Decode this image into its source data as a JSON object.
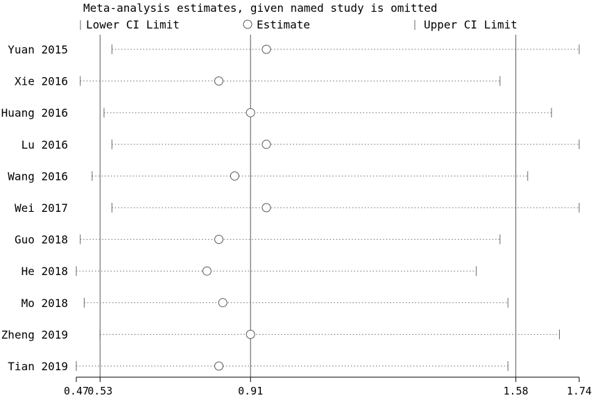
{
  "chart_data": {
    "type": "scatter",
    "title": "Meta-analysis estimates, given named study is omitted",
    "legend": {
      "placement": "top",
      "lower_label": "Lower CI Limit",
      "estimate_label": "Estimate",
      "upper_label": "Upper CI Limit"
    },
    "xlim": [
      0.47,
      1.74
    ],
    "xticks": [
      0.47,
      0.53,
      0.91,
      1.58,
      1.74
    ],
    "xtick_labels": [
      "0.47",
      "0.53",
      "0.91",
      "1.58",
      "1.74"
    ],
    "reference_lines": [
      0.53,
      0.91,
      1.58
    ],
    "grid": false,
    "studies": [
      {
        "label": "Yuan 2015",
        "lower": 0.56,
        "estimate": 0.95,
        "upper": 1.74
      },
      {
        "label": "Xie 2016",
        "lower": 0.48,
        "estimate": 0.83,
        "upper": 1.54
      },
      {
        "label": "Huang 2016",
        "lower": 0.54,
        "estimate": 0.91,
        "upper": 1.67
      },
      {
        "label": "Lu 2016",
        "lower": 0.56,
        "estimate": 0.95,
        "upper": 1.74
      },
      {
        "label": "Wang 2016",
        "lower": 0.51,
        "estimate": 0.87,
        "upper": 1.61
      },
      {
        "label": "Wei 2017",
        "lower": 0.56,
        "estimate": 0.95,
        "upper": 1.74
      },
      {
        "label": "Guo 2018",
        "lower": 0.48,
        "estimate": 0.83,
        "upper": 1.54
      },
      {
        "label": "He 2018",
        "lower": 0.47,
        "estimate": 0.8,
        "upper": 1.48
      },
      {
        "label": "Mo 2018",
        "lower": 0.49,
        "estimate": 0.84,
        "upper": 1.56
      },
      {
        "label": "Zheng 2019",
        "lower": 0.53,
        "estimate": 0.91,
        "upper": 1.69
      },
      {
        "label": "Tian 2019",
        "lower": 0.47,
        "estimate": 0.83,
        "upper": 1.56
      }
    ]
  }
}
